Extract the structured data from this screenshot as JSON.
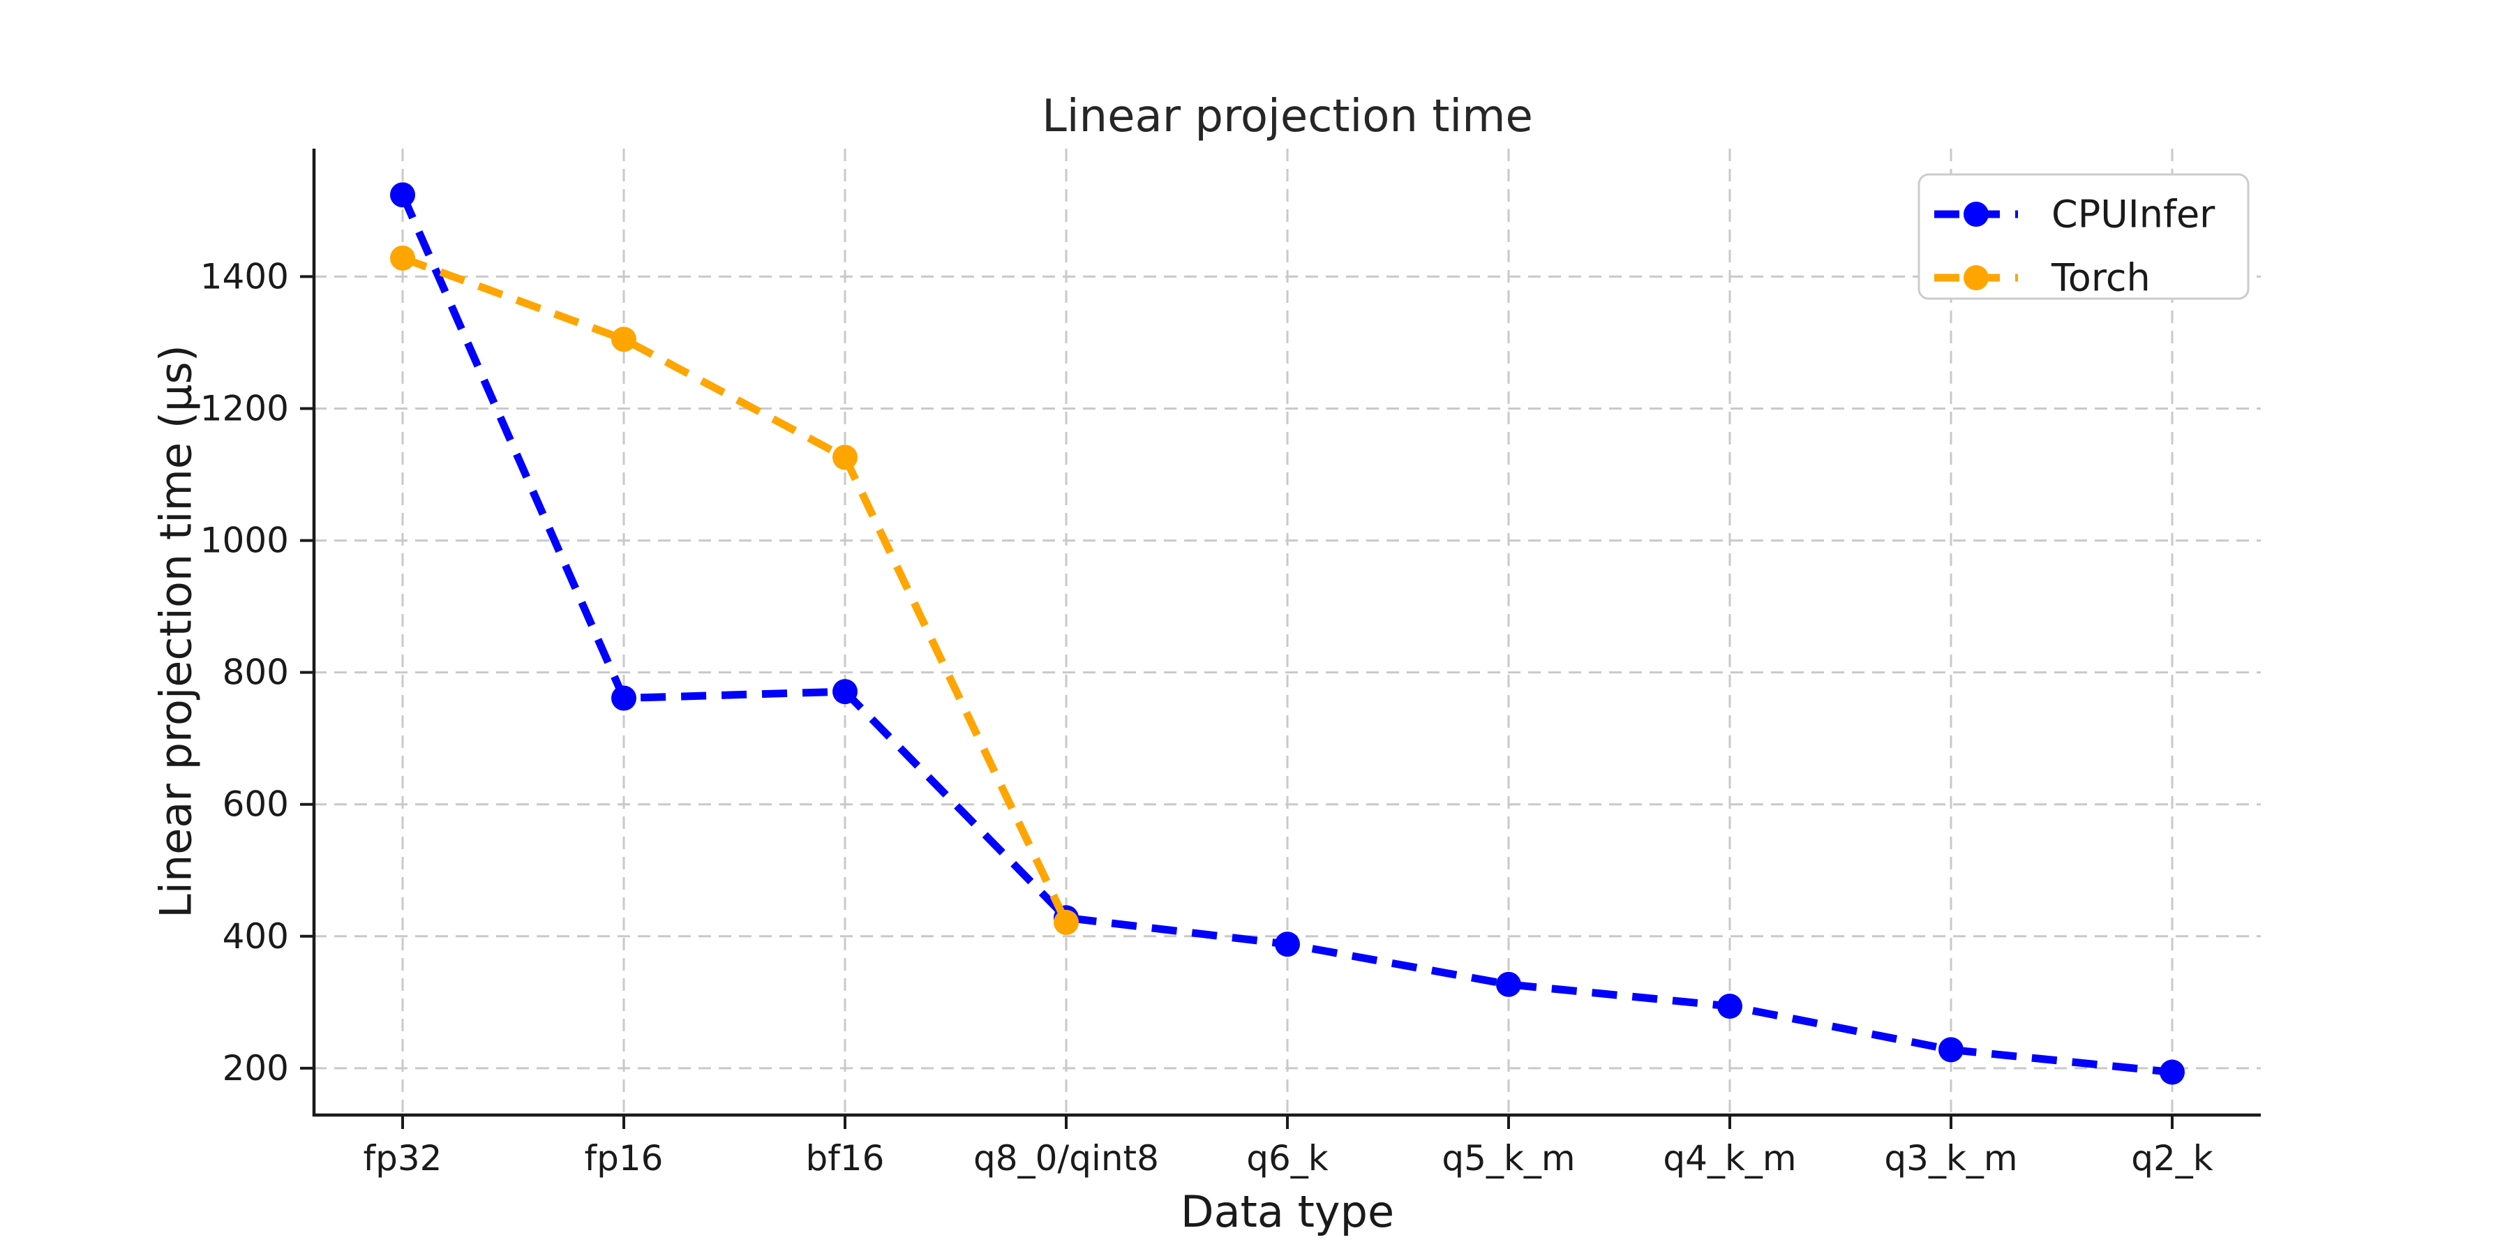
{
  "figure": {
    "background": "#ffffff"
  },
  "chart_data": {
    "type": "line",
    "title": "Linear projection time",
    "xlabel": "Data type",
    "ylabel": "Linear projection time (μs)",
    "categories": [
      "fp32",
      "fp16",
      "bf16",
      "q8_0/qint8",
      "q6_k",
      "q5_k_m",
      "q4_k_m",
      "q3_k_m",
      "q2_k"
    ],
    "yticks": [
      200,
      400,
      600,
      800,
      1000,
      1200,
      1400
    ],
    "ylim": [
      129,
      1594
    ],
    "grid": true,
    "line_style": "dashed",
    "marker": "circle",
    "legend_position": "upper right",
    "series": [
      {
        "name": "CPUInfer",
        "color": "#0000ff",
        "values": [
          1524,
          761,
          771,
          428,
          388,
          327,
          294,
          228,
          194
        ]
      },
      {
        "name": "Torch",
        "color": "#ffa500",
        "values": [
          1428,
          1305,
          1126,
          421,
          null,
          null,
          null,
          null,
          null
        ]
      }
    ]
  },
  "styles": {
    "grid_color": "#c9c9c9",
    "spine_color": "#1a1a1a",
    "tick_color": "#1a1a1a",
    "text_color": "#1a1a1a",
    "legend_border_color": "#cccccc",
    "legend_background": "#ffffff"
  }
}
